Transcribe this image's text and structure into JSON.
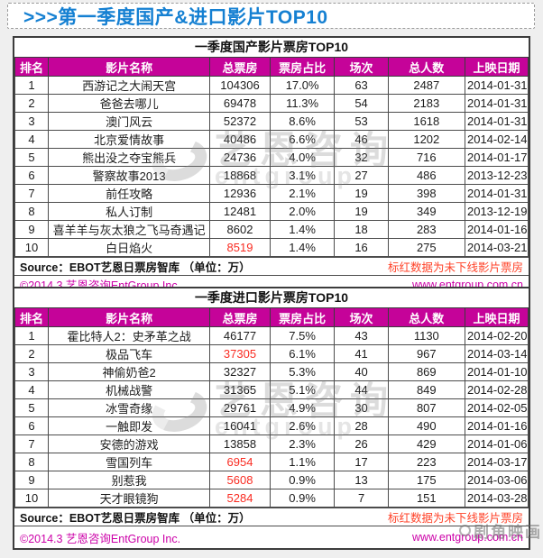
{
  "banner": {
    "title": ">>>第一季度国产&进口影片TOP10"
  },
  "colors": {
    "header_magenta": "#C50399",
    "banner_blue": "#1580D2",
    "red_highlight": "#F92B21",
    "red_note": "#FF4228",
    "footer_magenta": "#CC00A8"
  },
  "watermarks": {
    "entgroup_cn": "艺恩咨询",
    "entgroup_en": "entgroup",
    "corner": "剧角映画"
  },
  "chart_data": [
    {
      "type": "table",
      "title": "一季度国产影片票房TOP10",
      "columns": [
        "排名",
        "影片名称",
        "总票房",
        "票房占比",
        "场次",
        "总人数",
        "上映日期"
      ],
      "rows": [
        {
          "rank": "1",
          "name": "西游记之大闹天宫",
          "box_office": "104306",
          "red": false,
          "share": "17.0%",
          "sessions": "63",
          "audience": "2487",
          "release": "2014-01-31"
        },
        {
          "rank": "2",
          "name": "爸爸去哪儿",
          "box_office": "69478",
          "red": false,
          "share": "11.3%",
          "sessions": "54",
          "audience": "2183",
          "release": "2014-01-31"
        },
        {
          "rank": "3",
          "name": "澳门风云",
          "box_office": "52372",
          "red": false,
          "share": "8.6%",
          "sessions": "53",
          "audience": "1618",
          "release": "2014-01-31"
        },
        {
          "rank": "4",
          "name": "北京爱情故事",
          "box_office": "40486",
          "red": false,
          "share": "6.6%",
          "sessions": "46",
          "audience": "1202",
          "release": "2014-02-14"
        },
        {
          "rank": "5",
          "name": "熊出没之夺宝熊兵",
          "box_office": "24736",
          "red": false,
          "share": "4.0%",
          "sessions": "32",
          "audience": "716",
          "release": "2014-01-17"
        },
        {
          "rank": "6",
          "name": "警察故事2013",
          "box_office": "18868",
          "red": false,
          "share": "3.1%",
          "sessions": "27",
          "audience": "486",
          "release": "2013-12-23"
        },
        {
          "rank": "7",
          "name": "前任攻略",
          "box_office": "12936",
          "red": false,
          "share": "2.1%",
          "sessions": "19",
          "audience": "398",
          "release": "2014-01-31"
        },
        {
          "rank": "8",
          "name": "私人订制",
          "box_office": "12481",
          "red": false,
          "share": "2.0%",
          "sessions": "19",
          "audience": "349",
          "release": "2013-12-19"
        },
        {
          "rank": "9",
          "name": "喜羊羊与灰太狼之飞马奇遇记",
          "box_office": "8602",
          "red": false,
          "share": "1.4%",
          "sessions": "18",
          "audience": "283",
          "release": "2014-01-16"
        },
        {
          "rank": "10",
          "name": "白日焰火",
          "box_office": "8519",
          "red": true,
          "share": "1.4%",
          "sessions": "16",
          "audience": "275",
          "release": "2014-03-21"
        }
      ],
      "source_note": "Source：EBOT艺恩日票房智库 （单位：万）",
      "red_note": "标红数据为未下线影片票房",
      "copyright": "©2014.3 艺恩咨询EntGroup Inc.",
      "website": "www.entgroup.com.cn"
    },
    {
      "type": "table",
      "title": "一季度进口影片票房TOP10",
      "columns": [
        "排名",
        "影片名称",
        "总票房",
        "票房占比",
        "场次",
        "总人数",
        "上映日期"
      ],
      "rows": [
        {
          "rank": "1",
          "name": "霍比特人2：史矛革之战",
          "box_office": "46177",
          "red": false,
          "share": "7.5%",
          "sessions": "43",
          "audience": "1130",
          "release": "2014-02-20"
        },
        {
          "rank": "2",
          "name": "极品飞车",
          "box_office": "37305",
          "red": true,
          "share": "6.1%",
          "sessions": "41",
          "audience": "967",
          "release": "2014-03-14"
        },
        {
          "rank": "3",
          "name": "神偷奶爸2",
          "box_office": "32327",
          "red": false,
          "share": "5.3%",
          "sessions": "40",
          "audience": "869",
          "release": "2014-01-10"
        },
        {
          "rank": "4",
          "name": "机械战警",
          "box_office": "31365",
          "red": false,
          "share": "5.1%",
          "sessions": "44",
          "audience": "849",
          "release": "2014-02-28"
        },
        {
          "rank": "5",
          "name": "冰雪奇缘",
          "box_office": "29761",
          "red": false,
          "share": "4.9%",
          "sessions": "30",
          "audience": "807",
          "release": "2014-02-05"
        },
        {
          "rank": "6",
          "name": "一触即发",
          "box_office": "16041",
          "red": false,
          "share": "2.6%",
          "sessions": "28",
          "audience": "490",
          "release": "2014-01-16"
        },
        {
          "rank": "7",
          "name": "安德的游戏",
          "box_office": "13858",
          "red": false,
          "share": "2.3%",
          "sessions": "26",
          "audience": "429",
          "release": "2014-01-06"
        },
        {
          "rank": "8",
          "name": "雪国列车",
          "box_office": "6954",
          "red": true,
          "share": "1.1%",
          "sessions": "17",
          "audience": "223",
          "release": "2014-03-17"
        },
        {
          "rank": "9",
          "name": "别惹我",
          "box_office": "5608",
          "red": true,
          "share": "0.9%",
          "sessions": "13",
          "audience": "175",
          "release": "2014-03-06"
        },
        {
          "rank": "10",
          "name": "天才眼镜狗",
          "box_office": "5284",
          "red": true,
          "share": "0.9%",
          "sessions": "7",
          "audience": "151",
          "release": "2014-03-28"
        }
      ],
      "source_note": "Source：EBOT艺恩日票房智库 （单位：万）",
      "red_note": "标红数据为未下线影片票房",
      "copyright": "©2014.3 艺恩咨询EntGroup Inc.",
      "website": "www.entgroup.com.cn"
    }
  ]
}
